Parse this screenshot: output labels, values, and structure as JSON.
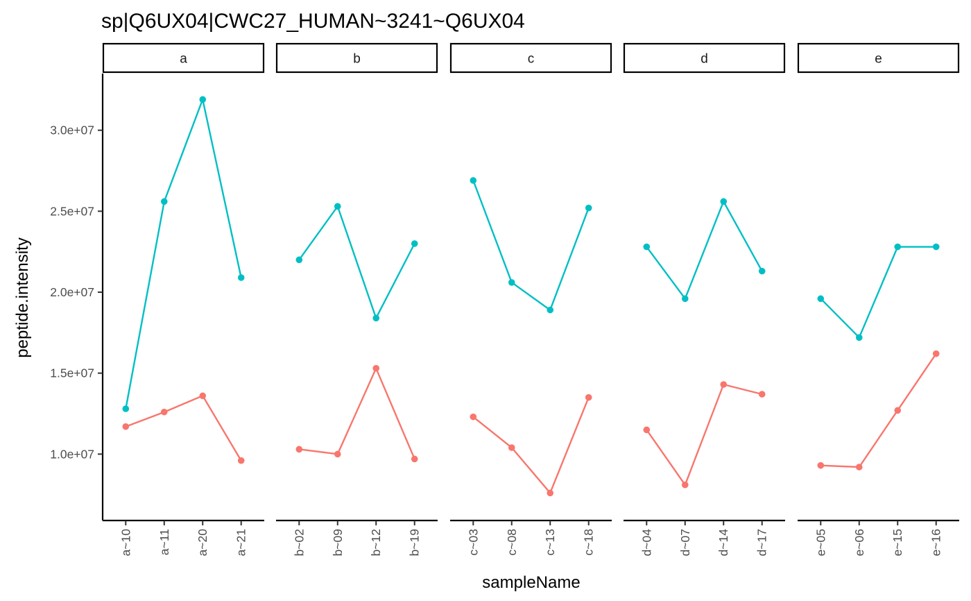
{
  "chart_data": {
    "type": "line",
    "title": "sp|Q6UX04|CWC27_HUMAN~3241~Q6UX04",
    "xlabel": "sampleName",
    "ylabel": "peptide.intensity",
    "ylim": [
      5900000,
      33500000
    ],
    "y_ticks": [
      10000000,
      15000000,
      20000000,
      25000000,
      30000000
    ],
    "y_tick_labels": [
      "1.0e+07",
      "1.5e+07",
      "2.0e+07",
      "2.5e+07",
      "3.0e+07"
    ],
    "grid": false,
    "legend": "none",
    "series_colors": [
      "#00BFC4",
      "#F8766D"
    ],
    "facets": [
      {
        "label": "a",
        "categories": [
          "a~10",
          "a~11",
          "a~20",
          "a~21"
        ],
        "series": [
          {
            "values": [
              12800000,
              25600000,
              31900000,
              20900000
            ]
          },
          {
            "values": [
              11700000,
              12600000,
              13600000,
              9600000
            ]
          }
        ]
      },
      {
        "label": "b",
        "categories": [
          "b~02",
          "b~09",
          "b~12",
          "b~19"
        ],
        "series": [
          {
            "values": [
              22000000,
              25300000,
              18400000,
              23000000
            ]
          },
          {
            "values": [
              10300000,
              10000000,
              15300000,
              9700000
            ]
          }
        ]
      },
      {
        "label": "c",
        "categories": [
          "c~03",
          "c~08",
          "c~13",
          "c~18"
        ],
        "series": [
          {
            "values": [
              26900000,
              20600000,
              18900000,
              25200000
            ]
          },
          {
            "values": [
              12300000,
              10400000,
              7600000,
              13500000
            ]
          }
        ]
      },
      {
        "label": "d",
        "categories": [
          "d~04",
          "d~07",
          "d~14",
          "d~17"
        ],
        "series": [
          {
            "values": [
              22800000,
              19600000,
              25600000,
              21300000
            ]
          },
          {
            "values": [
              11500000,
              8100000,
              14300000,
              13700000
            ]
          }
        ]
      },
      {
        "label": "e",
        "categories": [
          "e~05",
          "e~06",
          "e~15",
          "e~16"
        ],
        "series": [
          {
            "values": [
              19600000,
              17200000,
              22800000,
              22800000
            ]
          },
          {
            "values": [
              9300000,
              9200000,
              12700000,
              16200000
            ]
          }
        ]
      }
    ]
  }
}
